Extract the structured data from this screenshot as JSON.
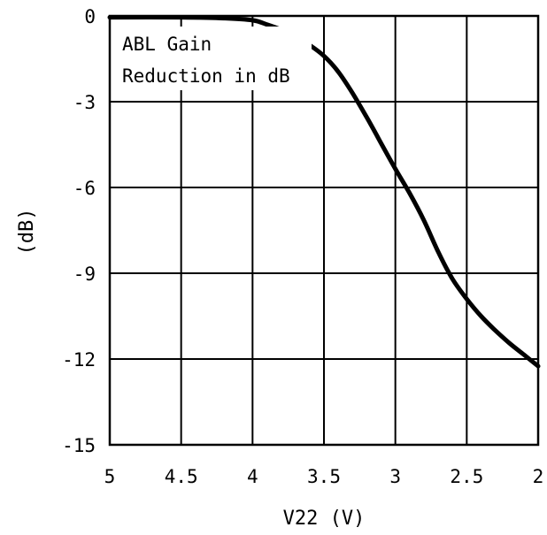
{
  "chart_data": {
    "type": "line",
    "xlabel": "V22 (V)",
    "ylabel": "(dB)",
    "annotation": [
      "ABL Gain",
      "Reduction in dB"
    ],
    "xlim": [
      5,
      2
    ],
    "ylim": [
      -15,
      0
    ],
    "x_ticks": [
      5,
      4.5,
      4,
      3.5,
      3,
      2.5,
      2
    ],
    "x_tick_labels": [
      "5",
      "4.5",
      "4",
      "3.5",
      "3",
      "2.5",
      "2"
    ],
    "y_ticks": [
      0,
      -3,
      -6,
      -9,
      -12,
      -15
    ],
    "y_tick_labels": [
      "0",
      "-3",
      "-6",
      "-9",
      "-12",
      "-15"
    ],
    "grid": true,
    "series": [
      {
        "color": "#000000",
        "x": [
          5.0,
          4.5,
          4.2,
          4.0,
          3.9,
          3.8,
          3.7,
          3.6,
          3.5,
          3.4,
          3.3,
          3.2,
          3.1,
          3.0,
          2.9,
          2.8,
          2.7,
          2.6,
          2.5,
          2.4,
          2.3,
          2.2,
          2.1,
          2.0
        ],
        "y": [
          -0.05,
          -0.05,
          -0.08,
          -0.15,
          -0.3,
          -0.48,
          -0.72,
          -1.02,
          -1.4,
          -1.95,
          -2.7,
          -3.55,
          -4.45,
          -5.35,
          -6.2,
          -7.15,
          -8.25,
          -9.2,
          -9.9,
          -10.5,
          -11.0,
          -11.45,
          -11.85,
          -12.25
        ]
      }
    ]
  }
}
